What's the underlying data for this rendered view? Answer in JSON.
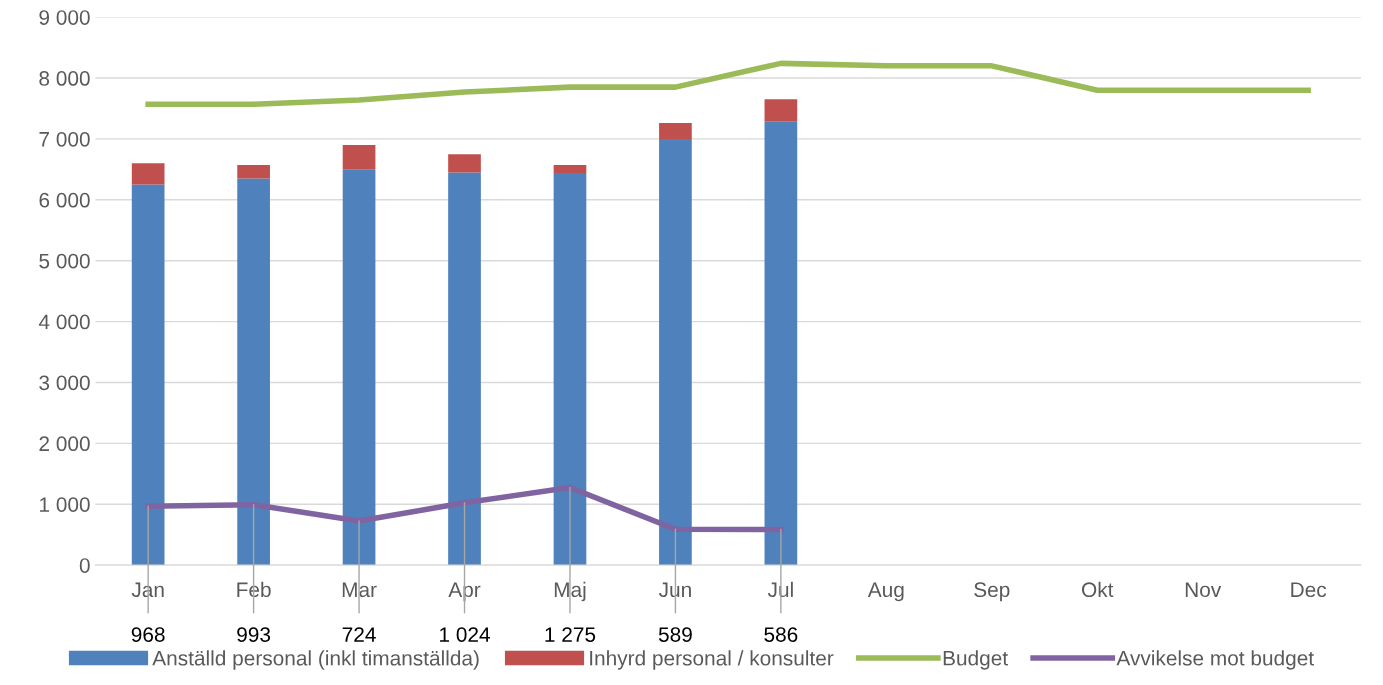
{
  "chart_data": {
    "type": "bar",
    "stacked": true,
    "categories": [
      "Jan",
      "Feb",
      "Mar",
      "Apr",
      "Maj",
      "Jun",
      "Jul",
      "Aug",
      "Sep",
      "Okt",
      "Nov",
      "Dec"
    ],
    "series": [
      {
        "name": "Anställd personal (inkl timanställda)",
        "color": "#4f81bd",
        "values": [
          6250,
          6350,
          6500,
          6450,
          6440,
          7000,
          7290,
          null,
          null,
          null,
          null,
          null
        ]
      },
      {
        "name": "Inhyrd personal / konsulter",
        "color": "#c0504d",
        "values": [
          350,
          220,
          400,
          300,
          130,
          260,
          360,
          null,
          null,
          null,
          null,
          null
        ]
      },
      {
        "name": "Budget",
        "type": "line",
        "color": "#9bbb59",
        "values": [
          7570,
          7570,
          7640,
          7770,
          7850,
          7850,
          8240,
          8200,
          8200,
          7800,
          7800,
          7800
        ]
      },
      {
        "name": "Avvikelse mot budget",
        "type": "line",
        "color": "#8064a2",
        "values": [
          968,
          993,
          724,
          1024,
          1275,
          589,
          586,
          null,
          null,
          null,
          null,
          null
        ],
        "value_labels": [
          "968",
          "993",
          "724",
          "1 024",
          "1 275",
          "589",
          "586",
          null,
          null,
          null,
          null,
          null
        ]
      }
    ],
    "ylim": [
      0,
      9000
    ],
    "yticks": [
      {
        "value": 0,
        "label": "0"
      },
      {
        "value": 1000,
        "label": "1 000"
      },
      {
        "value": 2000,
        "label": "2 000"
      },
      {
        "value": 3000,
        "label": "3 000"
      },
      {
        "value": 4000,
        "label": "4 000"
      },
      {
        "value": 5000,
        "label": "5 000"
      },
      {
        "value": 6000,
        "label": "6 000"
      },
      {
        "value": 7000,
        "label": "7 000"
      },
      {
        "value": 8000,
        "label": "8 000"
      },
      {
        "value": 9000,
        "label": "9 000"
      }
    ],
    "grid": "y",
    "legend": "bottom",
    "line_style": "solid",
    "marker": "none"
  }
}
